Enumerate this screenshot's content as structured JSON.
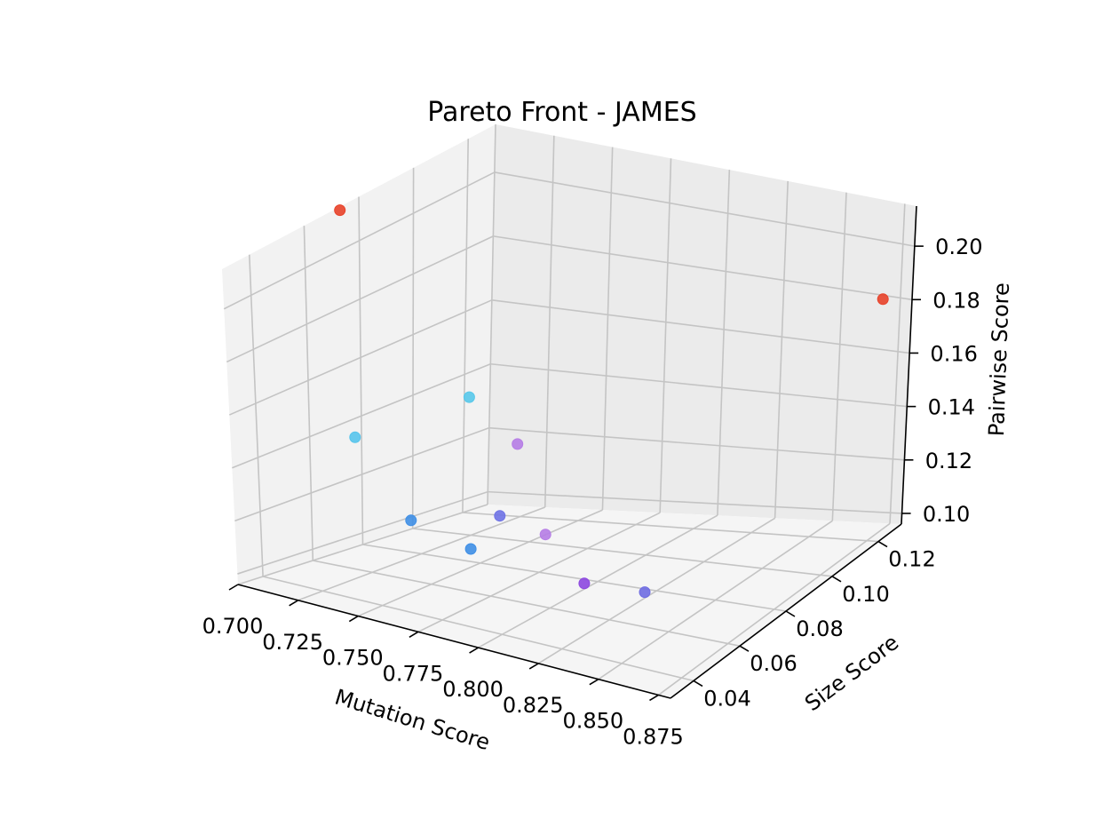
{
  "chart_data": {
    "type": "scatter",
    "projection": "3d",
    "title": "Pareto Front - JAMES",
    "xlabel": "Mutation Score",
    "ylabel": "Size Score",
    "zlabel": "Pairwise Score",
    "x_ticks": [
      "0.700",
      "0.725",
      "0.750",
      "0.775",
      "0.800",
      "0.825",
      "0.850",
      "0.875"
    ],
    "y_ticks": [
      "0.04",
      "0.06",
      "0.08",
      "0.10",
      "0.12"
    ],
    "z_ticks": [
      "0.10",
      "0.12",
      "0.14",
      "0.16",
      "0.18",
      "0.20"
    ],
    "xlim": [
      0.7,
      0.88
    ],
    "ylim": [
      0.03,
      0.13
    ],
    "zlim": [
      0.096,
      0.215
    ],
    "grid": true,
    "colormap": "rainbow (by pairwise score)",
    "points": [
      {
        "x": 0.703,
        "y": 0.065,
        "z": 0.205,
        "color": "#e8422a"
      },
      {
        "x": 0.868,
        "y": 0.124,
        "z": 0.195,
        "color": "#e8422a"
      },
      {
        "x": 0.712,
        "y": 0.11,
        "z": 0.137,
        "color": "#58c8ea"
      },
      {
        "x": 0.701,
        "y": 0.075,
        "z": 0.131,
        "color": "#56c4ec"
      },
      {
        "x": 0.718,
        "y": 0.124,
        "z": 0.12,
        "color": "#b67de6"
      },
      {
        "x": 0.738,
        "y": 0.098,
        "z": 0.108,
        "color": "#6f73e6"
      },
      {
        "x": 0.73,
        "y": 0.07,
        "z": 0.112,
        "color": "#3f8fe6"
      },
      {
        "x": 0.755,
        "y": 0.1,
        "z": 0.105,
        "color": "#b67de6"
      },
      {
        "x": 0.755,
        "y": 0.07,
        "z": 0.108,
        "color": "#3f8fe6"
      },
      {
        "x": 0.792,
        "y": 0.08,
        "z": 0.102,
        "color": "#8d48e0"
      },
      {
        "x": 0.812,
        "y": 0.085,
        "z": 0.102,
        "color": "#6f6de2"
      }
    ]
  }
}
